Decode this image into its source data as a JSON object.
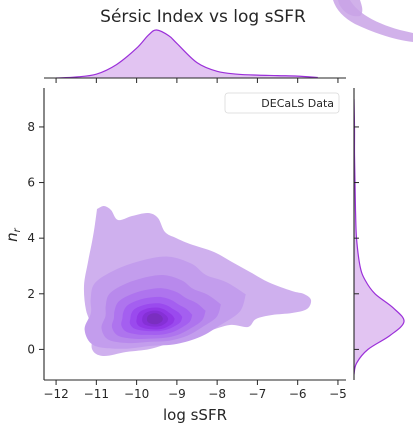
{
  "chart_data": {
    "type": "kde-joint",
    "title": "Sérsic Index vs log sSFR",
    "xlabel": "log sSFR",
    "ylabel": "n_r",
    "xlim": [
      -12.3,
      -4.8
    ],
    "ylim": [
      -1.1,
      9.4
    ],
    "xticks": [
      -12,
      -11,
      -10,
      -9,
      -8,
      -7,
      -6,
      -5
    ],
    "yticks": [
      0,
      2,
      4,
      6,
      8
    ],
    "legend": {
      "label": "DECaLS Data",
      "position": "top-right"
    },
    "grid": false,
    "color": "#9b30d9",
    "joint_density": {
      "mode": {
        "x": -9.55,
        "y": 1.1
      },
      "contour_levels": 9
    },
    "marginal_x": {
      "x": [
        -12.0,
        -11.5,
        -11.0,
        -10.5,
        -10.0,
        -9.7,
        -9.5,
        -9.2,
        -9.0,
        -8.5,
        -8.0,
        -7.5,
        -7.0,
        -6.5,
        -6.0,
        -5.5
      ],
      "density": [
        0.0,
        0.02,
        0.08,
        0.28,
        0.62,
        0.9,
        1.0,
        0.88,
        0.72,
        0.32,
        0.14,
        0.08,
        0.06,
        0.05,
        0.04,
        0.01
      ]
    },
    "marginal_y": {
      "y": [
        -0.9,
        -0.5,
        0.0,
        0.5,
        1.0,
        1.5,
        2.0,
        2.5,
        3.0,
        4.0,
        5.0,
        6.0,
        7.0,
        8.0,
        9.0
      ],
      "density": [
        0.0,
        0.05,
        0.28,
        0.72,
        1.0,
        0.78,
        0.42,
        0.22,
        0.12,
        0.05,
        0.03,
        0.02,
        0.01,
        0.01,
        0.0
      ]
    }
  }
}
